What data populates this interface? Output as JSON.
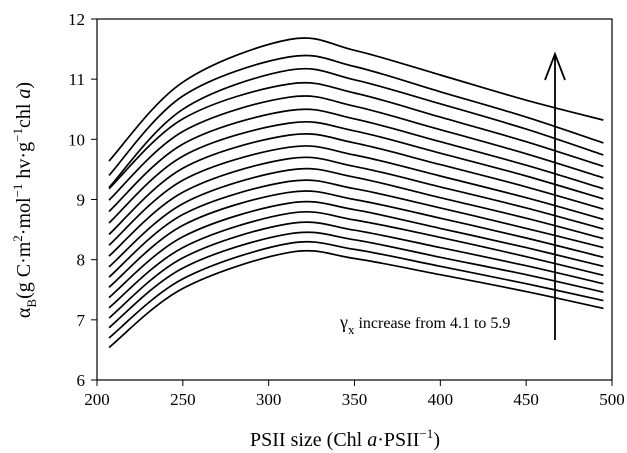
{
  "chart_data": {
    "type": "line",
    "xlabel": "PSII size (Chl a·PSII⁻¹)",
    "ylabel": "αB(g C·m²·mol⁻¹ hv·g⁻¹chl a)",
    "xlim": [
      200,
      500
    ],
    "ylim": [
      6,
      12
    ],
    "xticks": [
      "200",
      "250",
      "300",
      "350",
      "400",
      "450",
      "500"
    ],
    "yticks": [
      "6",
      "7",
      "8",
      "9",
      "10",
      "11",
      "12"
    ],
    "grid": false,
    "x": [
      207,
      250,
      312,
      350,
      400,
      450,
      495
    ],
    "series": [
      {
        "values": [
          6.54,
          7.52,
          8.12,
          8.02,
          7.75,
          7.47,
          7.19
        ]
      },
      {
        "values": [
          6.7,
          7.68,
          8.27,
          8.17,
          7.89,
          7.6,
          7.32
        ]
      },
      {
        "values": [
          6.87,
          7.86,
          8.43,
          8.33,
          8.04,
          7.75,
          7.46
        ]
      },
      {
        "values": [
          7.03,
          8.03,
          8.6,
          8.49,
          8.2,
          7.9,
          7.6
        ]
      },
      {
        "values": [
          7.2,
          8.2,
          8.77,
          8.66,
          8.37,
          8.05,
          7.74
        ]
      },
      {
        "values": [
          7.37,
          8.38,
          8.94,
          8.83,
          8.52,
          8.2,
          7.89
        ]
      },
      {
        "values": [
          7.54,
          8.57,
          9.12,
          9.0,
          8.69,
          8.36,
          8.04
        ]
      },
      {
        "values": [
          7.71,
          8.75,
          9.3,
          9.18,
          8.86,
          8.52,
          8.2
        ]
      },
      {
        "values": [
          7.88,
          8.93,
          9.49,
          9.37,
          9.03,
          8.69,
          8.35
        ]
      },
      {
        "values": [
          8.06,
          9.12,
          9.68,
          9.55,
          9.21,
          8.86,
          8.51
        ]
      },
      {
        "values": [
          8.24,
          9.32,
          9.87,
          9.74,
          9.39,
          9.03,
          8.67
        ]
      },
      {
        "values": [
          8.42,
          9.52,
          10.07,
          9.94,
          9.58,
          9.21,
          8.84
        ]
      },
      {
        "values": [
          8.61,
          9.72,
          10.27,
          10.14,
          9.77,
          9.39,
          9.01
        ]
      },
      {
        "values": [
          8.8,
          9.92,
          10.48,
          10.34,
          9.96,
          9.57,
          9.18
        ]
      },
      {
        "values": [
          8.99,
          10.13,
          10.7,
          10.55,
          10.16,
          9.76,
          9.36
        ]
      },
      {
        "values": [
          9.18,
          10.34,
          10.92,
          10.77,
          10.37,
          9.96,
          9.55
        ]
      },
      {
        "values": [
          9.2,
          10.5,
          11.15,
          10.99,
          10.59,
          10.17,
          9.74
        ]
      },
      {
        "values": [
          9.4,
          10.72,
          11.37,
          11.21,
          10.79,
          10.37,
          9.94
        ]
      },
      {
        "values": [
          9.64,
          10.95,
          11.66,
          11.48,
          11.07,
          10.65,
          10.32
        ]
      }
    ],
    "annotation": {
      "symbol": "γ",
      "subscript": "x",
      "text": " increase from 4.1 to 5.9"
    }
  }
}
